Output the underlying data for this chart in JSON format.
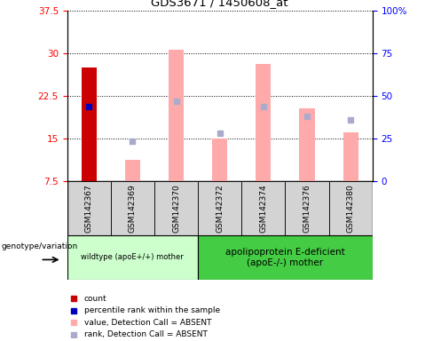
{
  "title": "GDS3671 / 1450608_at",
  "samples": [
    "GSM142367",
    "GSM142369",
    "GSM142370",
    "GSM142372",
    "GSM142374",
    "GSM142376",
    "GSM142380"
  ],
  "ylim_left": [
    7.5,
    37.5
  ],
  "ylim_right": [
    0,
    100
  ],
  "yticks_left": [
    7.5,
    15.0,
    22.5,
    30.0,
    37.5
  ],
  "yticks_right": [
    0,
    25,
    50,
    75,
    100
  ],
  "ytick_labels_left": [
    "7.5",
    "15",
    "22.5",
    "30",
    "37.5"
  ],
  "ytick_labels_right": [
    "0",
    "25",
    "50",
    "75",
    "100%"
  ],
  "count_values": [
    27.5,
    null,
    null,
    null,
    null,
    null,
    null
  ],
  "count_color": "#cc0000",
  "percentile_values": [
    20.5,
    null,
    null,
    null,
    null,
    null,
    null
  ],
  "percentile_color": "#0000bb",
  "absent_value_values": [
    null,
    11.2,
    30.5,
    15.0,
    28.0,
    20.2,
    16.0
  ],
  "absent_value_color": "#ffaaaa",
  "absent_rank_values": [
    null,
    14.5,
    21.5,
    15.8,
    20.5,
    18.8,
    18.2
  ],
  "absent_rank_color": "#aaaacc",
  "group1_indices": [
    0,
    1,
    2
  ],
  "group2_indices": [
    3,
    4,
    5,
    6
  ],
  "group1_label": "wildtype (apoE+/+) mother",
  "group2_label": "apolipoprotein E-deficient\n(apoE-/-) mother",
  "group1_color": "#ccffcc",
  "group2_color": "#44cc44",
  "genotype_label": "genotype/variation",
  "bar_width": 0.35,
  "baseline": 7.5,
  "legend_items": [
    {
      "color": "#cc0000",
      "label": "count"
    },
    {
      "color": "#0000bb",
      "label": "percentile rank within the sample"
    },
    {
      "color": "#ffaaaa",
      "label": "value, Detection Call = ABSENT"
    },
    {
      "color": "#aaaacc",
      "label": "rank, Detection Call = ABSENT"
    }
  ]
}
